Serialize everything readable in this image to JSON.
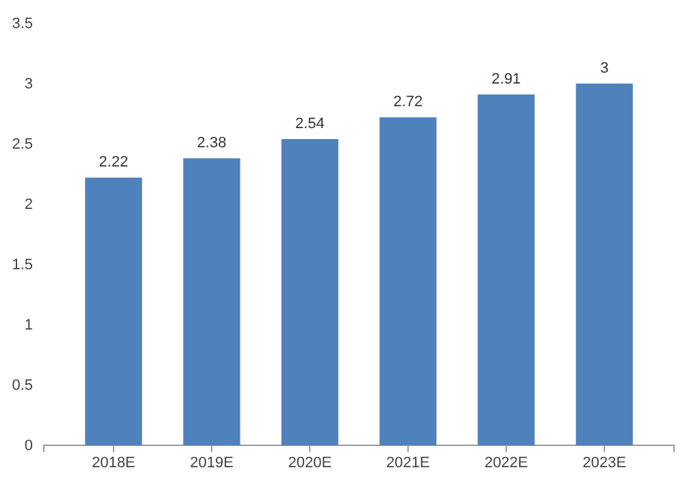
{
  "chart_data": {
    "type": "bar",
    "categories": [
      "2018E",
      "2019E",
      "2020E",
      "2021E",
      "2022E",
      "2023E"
    ],
    "values": [
      2.22,
      2.38,
      2.54,
      2.72,
      2.91,
      3
    ],
    "color": "#4f81bd",
    "ylim": [
      0,
      3.5
    ],
    "yticks": [
      0,
      {
        "value": 0.5,
        "label": "0.5"
      },
      1,
      {
        "value": 1.5,
        "label": "1.5"
      },
      2,
      {
        "value": 2.5,
        "label": "2.5"
      },
      3,
      {
        "value": 3.5,
        "label": "3.5"
      }
    ],
    "value_labels": [
      "2.22",
      "2.38",
      "2.54",
      "2.72",
      "2.91",
      "3"
    ],
    "grid": false
  }
}
